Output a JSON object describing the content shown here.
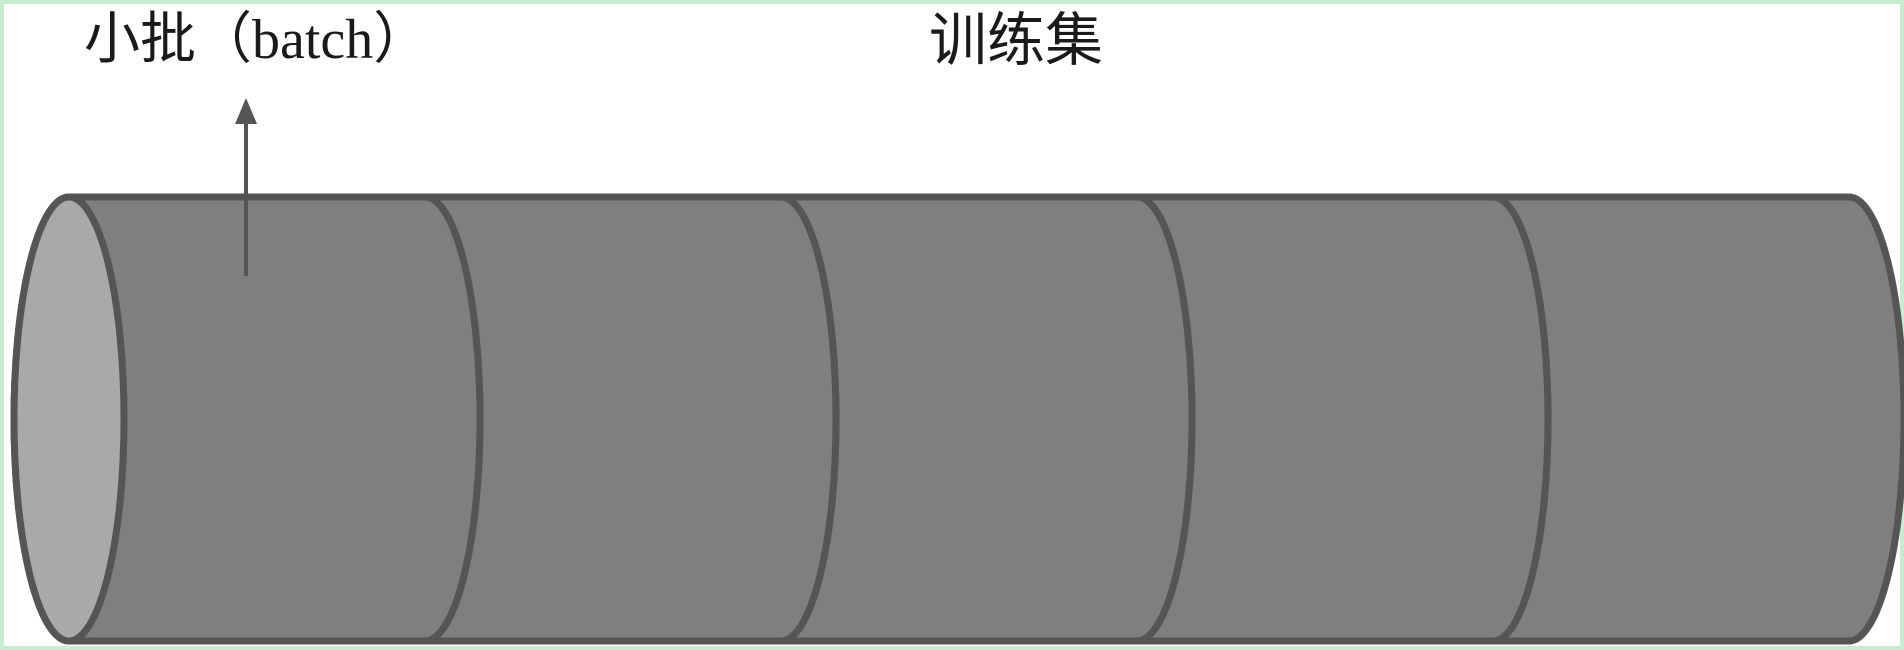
{
  "labels": {
    "batch": "小批（batch）",
    "training_set": "训练集"
  },
  "diagram": {
    "segment_count": 5,
    "colors": {
      "body_fill": "#7f7f7f",
      "face_fill": "#a9a9a9",
      "stroke": "#555555",
      "arrow": "#555555",
      "background": "#ffffff",
      "frame": "#c9ecd0"
    }
  }
}
